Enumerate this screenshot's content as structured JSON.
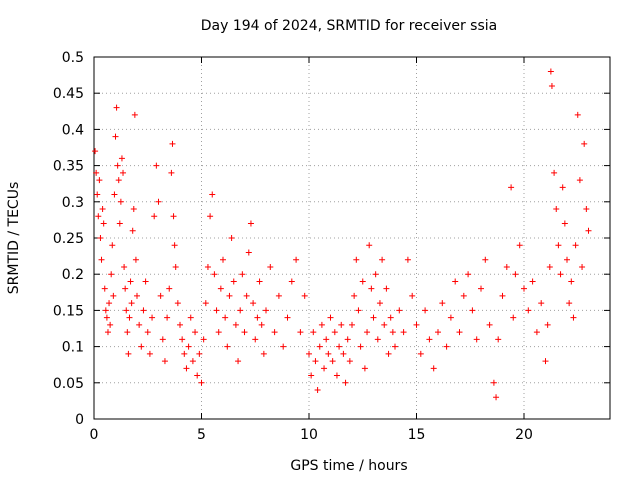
{
  "chart_data": {
    "type": "scatter",
    "title": "Day 194 of 2024, SRMTID for receiver ssia",
    "xlabel": "GPS time / hours",
    "ylabel": "SRMTID / TECUs",
    "xlim": [
      0,
      24
    ],
    "ylim": [
      0,
      0.5
    ],
    "xticks": [
      0,
      5,
      10,
      15,
      20
    ],
    "xtick_labels": [
      "0",
      "5",
      "10",
      "15",
      "20"
    ],
    "yticks": [
      0,
      0.05,
      0.1,
      0.15,
      0.2,
      0.25,
      0.3,
      0.35,
      0.4,
      0.45,
      0.5
    ],
    "ytick_labels": [
      "0",
      "0.05",
      "0.1",
      "0.15",
      "0.2",
      "0.25",
      "0.3",
      "0.35",
      "0.4",
      "0.45",
      "0.5"
    ],
    "grid": true,
    "marker": "+",
    "color": "#ff0000",
    "series": [
      {
        "name": "SRMTID",
        "points": [
          [
            0.05,
            0.37
          ],
          [
            0.1,
            0.34
          ],
          [
            0.15,
            0.31
          ],
          [
            0.2,
            0.28
          ],
          [
            0.25,
            0.33
          ],
          [
            0.3,
            0.25
          ],
          [
            0.35,
            0.22
          ],
          [
            0.4,
            0.29
          ],
          [
            0.45,
            0.27
          ],
          [
            0.5,
            0.18
          ],
          [
            0.55,
            0.15
          ],
          [
            0.6,
            0.14
          ],
          [
            0.65,
            0.12
          ],
          [
            0.7,
            0.16
          ],
          [
            0.75,
            0.13
          ],
          [
            0.8,
            0.2
          ],
          [
            0.85,
            0.24
          ],
          [
            0.9,
            0.17
          ],
          [
            0.95,
            0.31
          ],
          [
            1.0,
            0.39
          ],
          [
            1.05,
            0.43
          ],
          [
            1.1,
            0.35
          ],
          [
            1.15,
            0.33
          ],
          [
            1.2,
            0.27
          ],
          [
            1.25,
            0.3
          ],
          [
            1.3,
            0.36
          ],
          [
            1.35,
            0.34
          ],
          [
            1.4,
            0.21
          ],
          [
            1.45,
            0.18
          ],
          [
            1.5,
            0.15
          ],
          [
            1.55,
            0.12
          ],
          [
            1.6,
            0.09
          ],
          [
            1.65,
            0.14
          ],
          [
            1.7,
            0.19
          ],
          [
            1.75,
            0.16
          ],
          [
            1.8,
            0.26
          ],
          [
            1.85,
            0.29
          ],
          [
            1.9,
            0.42
          ],
          [
            1.95,
            0.22
          ],
          [
            2.0,
            0.17
          ],
          [
            2.1,
            0.13
          ],
          [
            2.2,
            0.1
          ],
          [
            2.3,
            0.15
          ],
          [
            2.4,
            0.19
          ],
          [
            2.5,
            0.12
          ],
          [
            2.6,
            0.09
          ],
          [
            2.7,
            0.14
          ],
          [
            2.8,
            0.28
          ],
          [
            2.9,
            0.35
          ],
          [
            3.0,
            0.3
          ],
          [
            3.1,
            0.17
          ],
          [
            3.2,
            0.11
          ],
          [
            3.3,
            0.08
          ],
          [
            3.4,
            0.14
          ],
          [
            3.5,
            0.18
          ],
          [
            3.6,
            0.34
          ],
          [
            3.65,
            0.38
          ],
          [
            3.7,
            0.28
          ],
          [
            3.75,
            0.24
          ],
          [
            3.8,
            0.21
          ],
          [
            3.9,
            0.16
          ],
          [
            4.0,
            0.13
          ],
          [
            4.1,
            0.11
          ],
          [
            4.2,
            0.09
          ],
          [
            4.3,
            0.07
          ],
          [
            4.4,
            0.1
          ],
          [
            4.5,
            0.14
          ],
          [
            4.6,
            0.08
          ],
          [
            4.7,
            0.12
          ],
          [
            4.8,
            0.06
          ],
          [
            4.9,
            0.09
          ],
          [
            5.0,
            0.05
          ],
          [
            5.1,
            0.11
          ],
          [
            5.2,
            0.16
          ],
          [
            5.3,
            0.21
          ],
          [
            5.4,
            0.28
          ],
          [
            5.5,
            0.31
          ],
          [
            5.6,
            0.2
          ],
          [
            5.7,
            0.15
          ],
          [
            5.8,
            0.12
          ],
          [
            5.9,
            0.18
          ],
          [
            6.0,
            0.22
          ],
          [
            6.1,
            0.14
          ],
          [
            6.2,
            0.1
          ],
          [
            6.3,
            0.17
          ],
          [
            6.4,
            0.25
          ],
          [
            6.5,
            0.19
          ],
          [
            6.6,
            0.13
          ],
          [
            6.7,
            0.08
          ],
          [
            6.8,
            0.15
          ],
          [
            6.9,
            0.2
          ],
          [
            7.0,
            0.12
          ],
          [
            7.1,
            0.17
          ],
          [
            7.2,
            0.23
          ],
          [
            7.3,
            0.27
          ],
          [
            7.4,
            0.16
          ],
          [
            7.5,
            0.11
          ],
          [
            7.6,
            0.14
          ],
          [
            7.7,
            0.19
          ],
          [
            7.8,
            0.13
          ],
          [
            7.9,
            0.09
          ],
          [
            8.0,
            0.15
          ],
          [
            8.2,
            0.21
          ],
          [
            8.4,
            0.12
          ],
          [
            8.6,
            0.17
          ],
          [
            8.8,
            0.1
          ],
          [
            9.0,
            0.14
          ],
          [
            9.2,
            0.19
          ],
          [
            9.4,
            0.22
          ],
          [
            9.6,
            0.12
          ],
          [
            9.8,
            0.17
          ],
          [
            10.0,
            0.09
          ],
          [
            10.1,
            0.06
          ],
          [
            10.2,
            0.12
          ],
          [
            10.3,
            0.08
          ],
          [
            10.4,
            0.04
          ],
          [
            10.5,
            0.1
          ],
          [
            10.6,
            0.13
          ],
          [
            10.7,
            0.07
          ],
          [
            10.8,
            0.11
          ],
          [
            10.9,
            0.09
          ],
          [
            11.0,
            0.14
          ],
          [
            11.1,
            0.08
          ],
          [
            11.2,
            0.12
          ],
          [
            11.3,
            0.06
          ],
          [
            11.4,
            0.1
          ],
          [
            11.5,
            0.13
          ],
          [
            11.6,
            0.09
          ],
          [
            11.7,
            0.05
          ],
          [
            11.8,
            0.11
          ],
          [
            11.9,
            0.08
          ],
          [
            12.0,
            0.13
          ],
          [
            12.1,
            0.17
          ],
          [
            12.2,
            0.22
          ],
          [
            12.3,
            0.15
          ],
          [
            12.4,
            0.1
          ],
          [
            12.5,
            0.19
          ],
          [
            12.6,
            0.07
          ],
          [
            12.7,
            0.12
          ],
          [
            12.8,
            0.24
          ],
          [
            12.9,
            0.18
          ],
          [
            13.0,
            0.14
          ],
          [
            13.1,
            0.2
          ],
          [
            13.2,
            0.11
          ],
          [
            13.3,
            0.16
          ],
          [
            13.4,
            0.22
          ],
          [
            13.5,
            0.13
          ],
          [
            13.6,
            0.18
          ],
          [
            13.7,
            0.09
          ],
          [
            13.8,
            0.14
          ],
          [
            13.9,
            0.12
          ],
          [
            14.0,
            0.1
          ],
          [
            14.2,
            0.15
          ],
          [
            14.4,
            0.12
          ],
          [
            14.6,
            0.22
          ],
          [
            14.8,
            0.17
          ],
          [
            15.0,
            0.13
          ],
          [
            15.2,
            0.09
          ],
          [
            15.4,
            0.15
          ],
          [
            15.6,
            0.11
          ],
          [
            15.8,
            0.07
          ],
          [
            16.0,
            0.12
          ],
          [
            16.2,
            0.16
          ],
          [
            16.4,
            0.1
          ],
          [
            16.6,
            0.14
          ],
          [
            16.8,
            0.19
          ],
          [
            17.0,
            0.12
          ],
          [
            17.2,
            0.17
          ],
          [
            17.4,
            0.2
          ],
          [
            17.6,
            0.15
          ],
          [
            17.8,
            0.11
          ],
          [
            18.0,
            0.18
          ],
          [
            18.2,
            0.22
          ],
          [
            18.4,
            0.13
          ],
          [
            18.6,
            0.05
          ],
          [
            18.7,
            0.03
          ],
          [
            18.8,
            0.11
          ],
          [
            19.0,
            0.17
          ],
          [
            19.2,
            0.21
          ],
          [
            19.4,
            0.32
          ],
          [
            19.5,
            0.14
          ],
          [
            19.6,
            0.2
          ],
          [
            19.8,
            0.24
          ],
          [
            20.0,
            0.18
          ],
          [
            20.2,
            0.15
          ],
          [
            20.4,
            0.19
          ],
          [
            20.6,
            0.12
          ],
          [
            20.8,
            0.16
          ],
          [
            21.0,
            0.08
          ],
          [
            21.1,
            0.13
          ],
          [
            21.2,
            0.21
          ],
          [
            21.25,
            0.48
          ],
          [
            21.3,
            0.46
          ],
          [
            21.4,
            0.34
          ],
          [
            21.5,
            0.29
          ],
          [
            21.6,
            0.24
          ],
          [
            21.7,
            0.2
          ],
          [
            21.8,
            0.32
          ],
          [
            21.9,
            0.27
          ],
          [
            22.0,
            0.22
          ],
          [
            22.1,
            0.16
          ],
          [
            22.2,
            0.19
          ],
          [
            22.3,
            0.14
          ],
          [
            22.4,
            0.24
          ],
          [
            22.5,
            0.42
          ],
          [
            22.6,
            0.33
          ],
          [
            22.7,
            0.21
          ],
          [
            22.8,
            0.38
          ],
          [
            22.9,
            0.29
          ],
          [
            23.0,
            0.26
          ]
        ]
      }
    ]
  }
}
